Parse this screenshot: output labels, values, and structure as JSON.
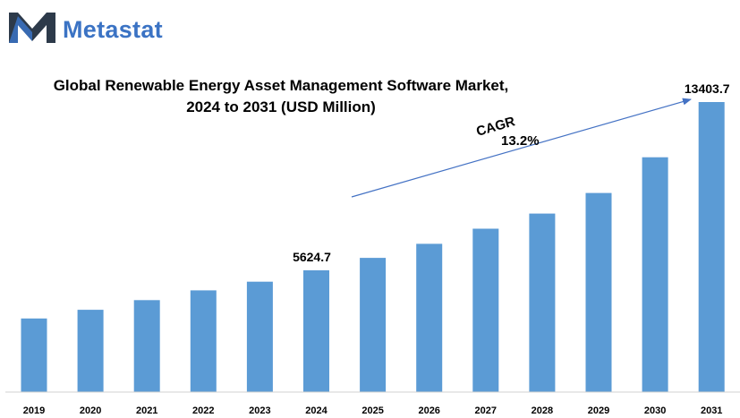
{
  "brand": {
    "name": "Metastat",
    "color": "#3b73c4"
  },
  "chart_data": {
    "type": "bar",
    "title_line1": "Global Renewable Energy Asset Management Software Market,",
    "title_line2": "2024 to 2031 (USD Million)",
    "categories": [
      "2019",
      "2020",
      "2021",
      "2022",
      "2023",
      "2024",
      "2025",
      "2026",
      "2027",
      "2028",
      "2029",
      "2030",
      "2031"
    ],
    "values": [
      3400,
      3800,
      4250,
      4700,
      5100,
      5624.7,
      6200,
      6850,
      7550,
      8250,
      9200,
      10850,
      13403.7
    ],
    "data_labels": [
      {
        "index": 5,
        "text": "5624.7"
      },
      {
        "index": 12,
        "text": "13403.7"
      }
    ],
    "annotation": {
      "label": "CAGR",
      "value": "13.2%"
    },
    "bar_color": "#5b9bd5",
    "xlabel": "",
    "ylabel": "",
    "grid": false
  }
}
